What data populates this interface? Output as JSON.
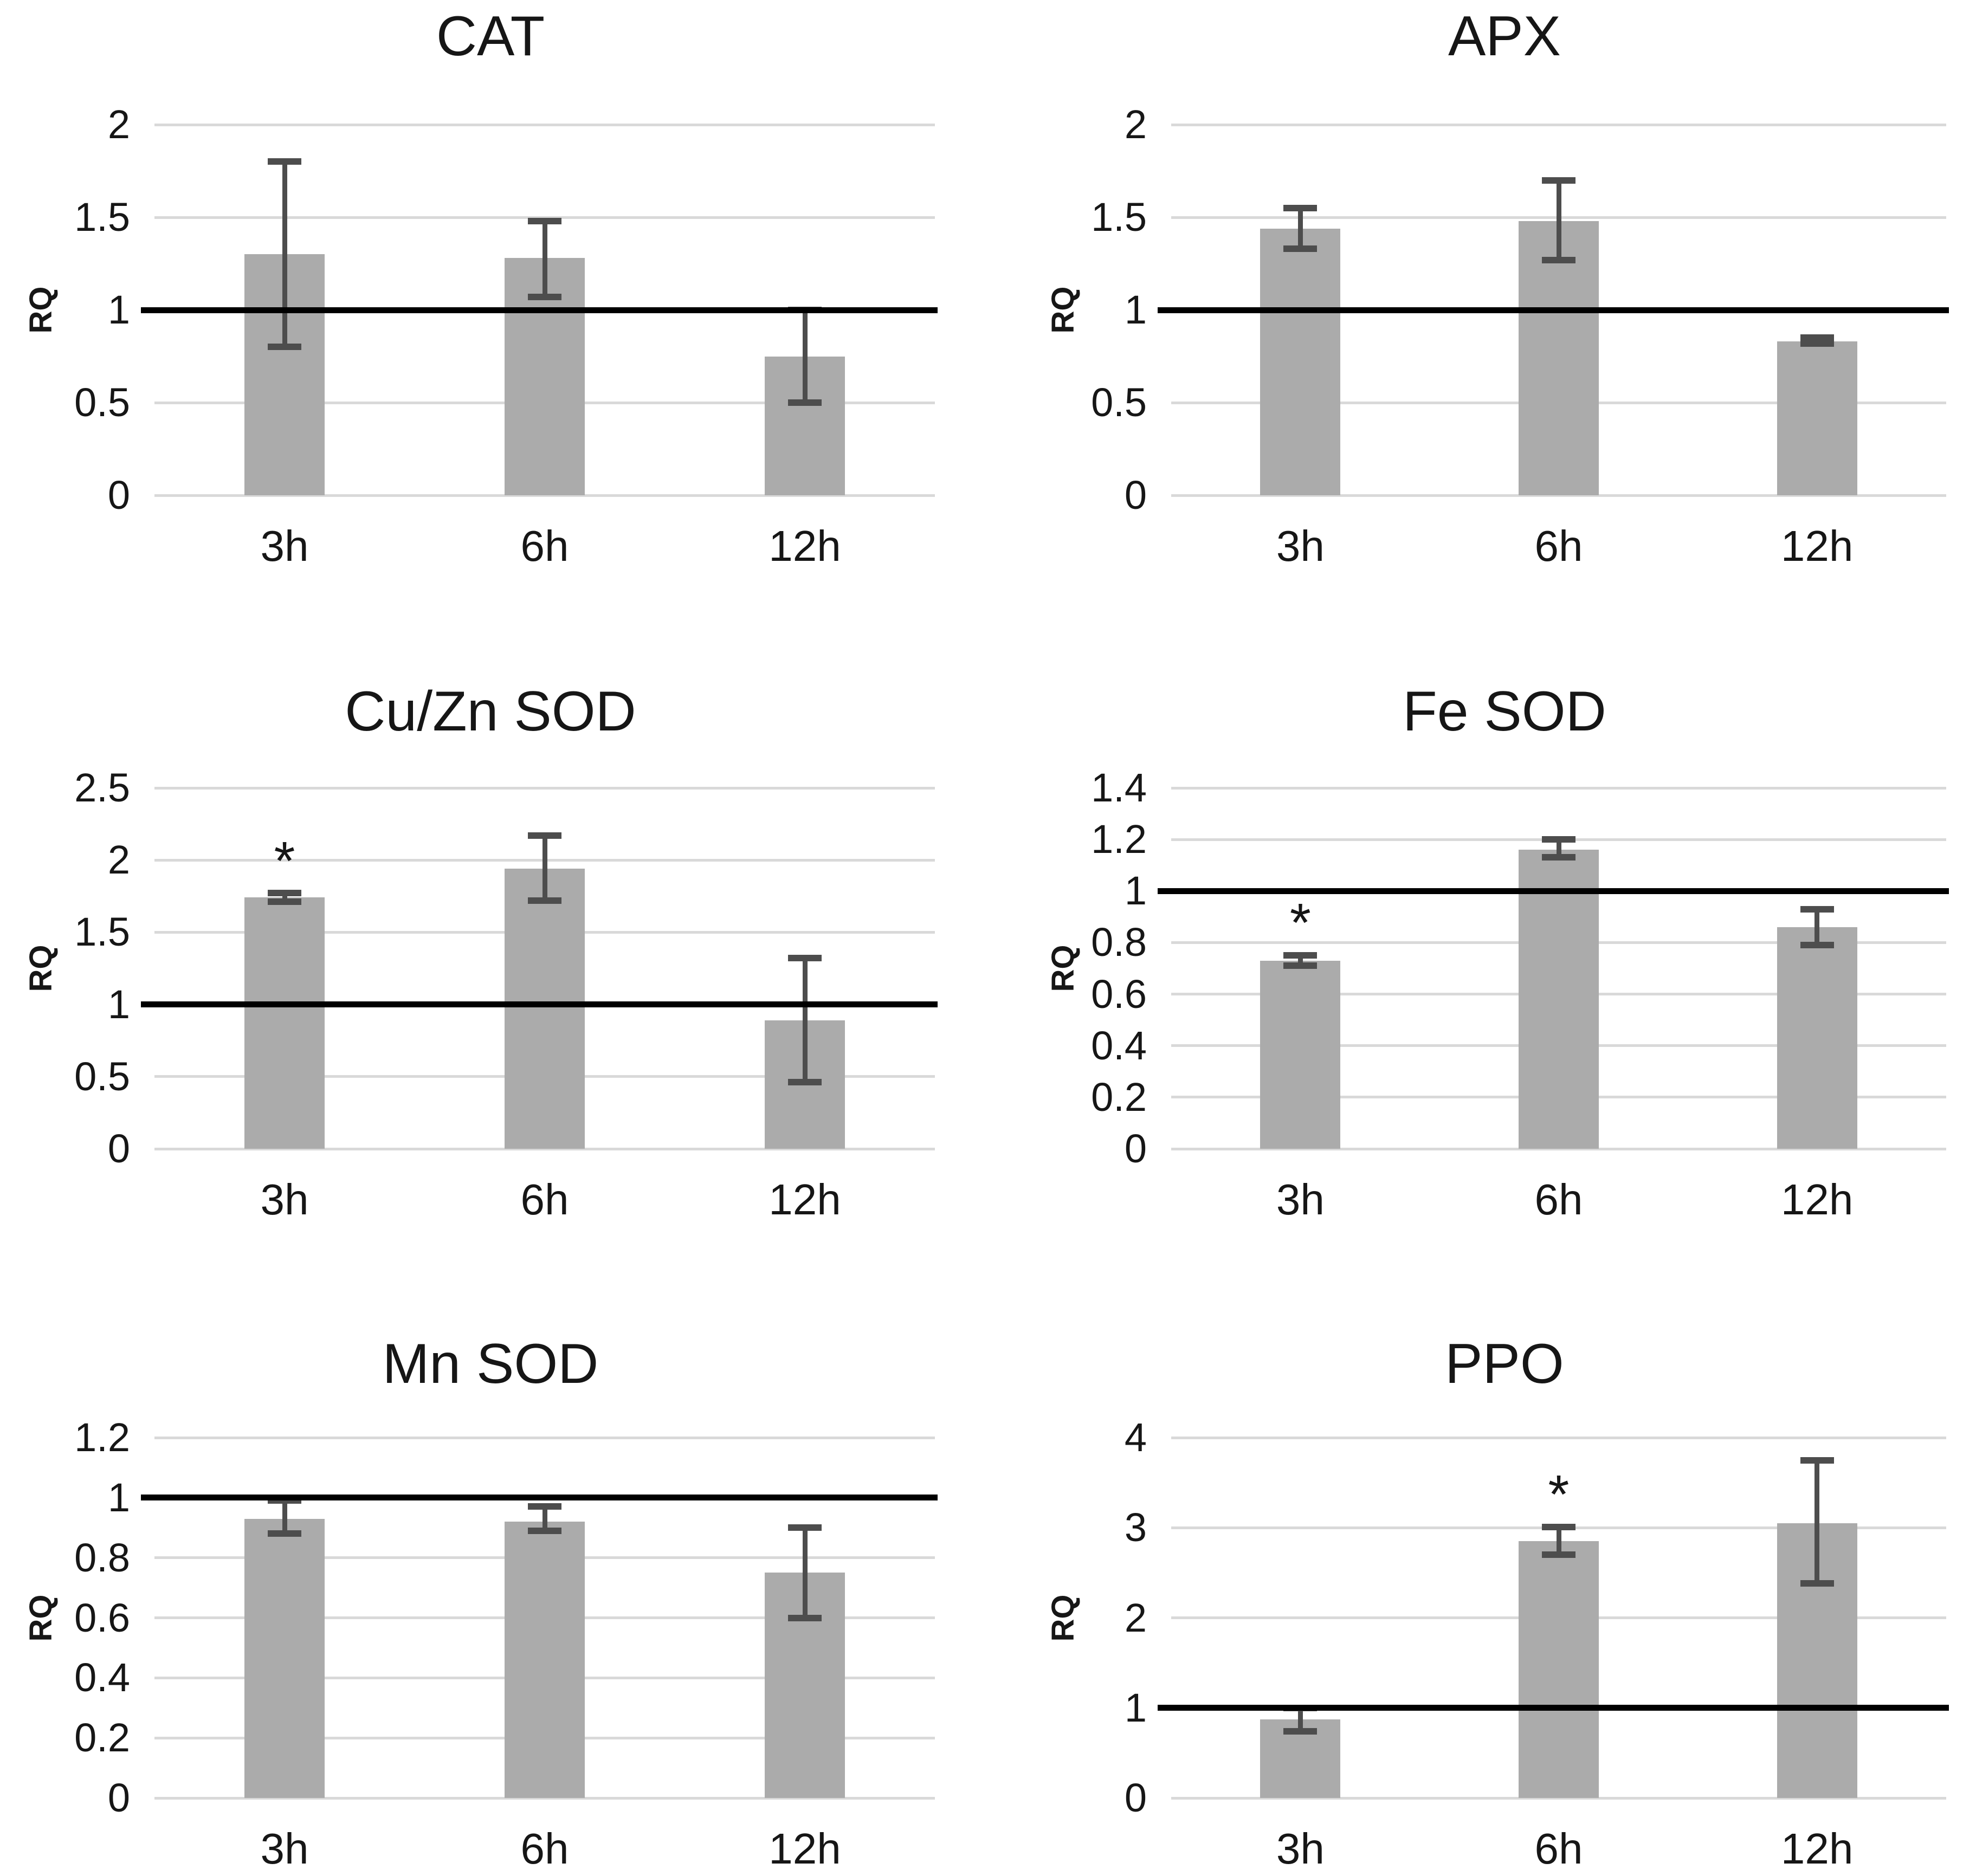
{
  "star_symbol": "*",
  "colors": {
    "background": "#ffffff",
    "bar_fill": "#ababab",
    "error_bar": "#4d4d4d",
    "gridline": "#d9d9d9",
    "reference_line": "#000000",
    "text": "#161616"
  },
  "chart_data": [
    {
      "type": "bar",
      "title": "CAT",
      "ylabel": "RQ",
      "xlabel": "",
      "categories": [
        "3h",
        "6h",
        "12h"
      ],
      "values": [
        1.3,
        1.28,
        0.75
      ],
      "error_low": [
        0.8,
        1.07,
        0.5
      ],
      "error_high": [
        1.8,
        1.48,
        1.0
      ],
      "stars": [
        false,
        false,
        false
      ],
      "reference_line": 1,
      "ylim": [
        0,
        2
      ],
      "yticks": [
        0,
        0.5,
        1,
        1.5,
        2
      ],
      "ytick_labels": [
        "0",
        "0.5",
        "1",
        "1.5",
        "2"
      ],
      "grid": true,
      "legend": false
    },
    {
      "type": "bar",
      "title": "APX",
      "ylabel": "RQ",
      "xlabel": "",
      "categories": [
        "3h",
        "6h",
        "12h"
      ],
      "values": [
        1.44,
        1.48,
        0.83
      ],
      "error_low": [
        1.33,
        1.27,
        0.82
      ],
      "error_high": [
        1.55,
        1.7,
        0.85
      ],
      "stars": [
        false,
        false,
        false
      ],
      "reference_line": 1,
      "ylim": [
        0,
        2
      ],
      "yticks": [
        0,
        0.5,
        1,
        1.5,
        2
      ],
      "ytick_labels": [
        "0",
        "0.5",
        "1",
        "1.5",
        "2"
      ],
      "grid": true,
      "legend": false
    },
    {
      "type": "bar",
      "title": "Cu/Zn SOD",
      "ylabel": "RQ",
      "xlabel": "",
      "categories": [
        "3h",
        "6h",
        "12h"
      ],
      "values": [
        1.74,
        1.94,
        0.89
      ],
      "error_low": [
        1.71,
        1.72,
        0.46
      ],
      "error_high": [
        1.77,
        2.17,
        1.32
      ],
      "stars": [
        true,
        false,
        false
      ],
      "reference_line": 1,
      "ylim": [
        0,
        2.5
      ],
      "yticks": [
        0,
        0.5,
        1,
        1.5,
        2,
        2.5
      ],
      "ytick_labels": [
        "0",
        "0.5",
        "1",
        "1.5",
        "2",
        "2.5"
      ],
      "grid": true,
      "legend": false
    },
    {
      "type": "bar",
      "title": "Fe SOD",
      "ylabel": "RQ",
      "xlabel": "",
      "categories": [
        "3h",
        "6h",
        "12h"
      ],
      "values": [
        0.73,
        1.16,
        0.86
      ],
      "error_low": [
        0.71,
        1.13,
        0.79
      ],
      "error_high": [
        0.75,
        1.2,
        0.93
      ],
      "stars": [
        true,
        false,
        false
      ],
      "reference_line": 1,
      "ylim": [
        0,
        1.4
      ],
      "yticks": [
        0,
        0.2,
        0.4,
        0.6,
        0.8,
        1,
        1.2,
        1.4
      ],
      "ytick_labels": [
        "0",
        "0.2",
        "0.4",
        "0.6",
        "0.8",
        "1",
        "1.2",
        "1.4"
      ],
      "grid": true,
      "legend": false
    },
    {
      "type": "bar",
      "title": "Mn SOD",
      "ylabel": "RQ",
      "xlabel": "",
      "categories": [
        "3h",
        "6h",
        "12h"
      ],
      "values": [
        0.93,
        0.92,
        0.75
      ],
      "error_low": [
        0.88,
        0.89,
        0.6
      ],
      "error_high": [
        0.99,
        0.97,
        0.9
      ],
      "stars": [
        false,
        false,
        false
      ],
      "reference_line": 1,
      "ylim": [
        0,
        1.2
      ],
      "yticks": [
        0,
        0.2,
        0.4,
        0.6,
        0.8,
        1,
        1.2
      ],
      "ytick_labels": [
        "0",
        "0.2",
        "0.4",
        "0.6",
        "0.8",
        "1",
        "1.2"
      ],
      "grid": true,
      "legend": false
    },
    {
      "type": "bar",
      "title": "PPO",
      "ylabel": "RQ",
      "xlabel": "",
      "categories": [
        "3h",
        "6h",
        "12h"
      ],
      "values": [
        0.87,
        2.85,
        3.05
      ],
      "error_low": [
        0.74,
        2.7,
        2.38
      ],
      "error_high": [
        1.0,
        3.01,
        3.75
      ],
      "stars": [
        false,
        true,
        false
      ],
      "reference_line": 1,
      "ylim": [
        0,
        4
      ],
      "yticks": [
        0,
        1,
        2,
        3,
        4
      ],
      "ytick_labels": [
        "0",
        "1",
        "2",
        "3",
        "4"
      ],
      "grid": true,
      "legend": false
    }
  ]
}
